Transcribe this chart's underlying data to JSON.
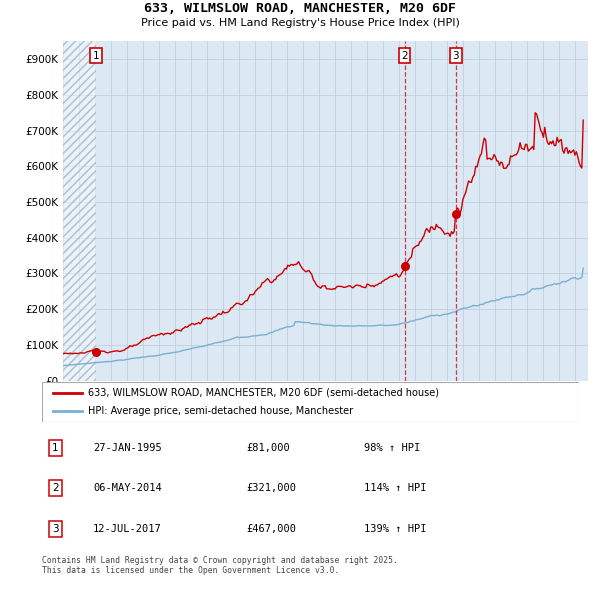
{
  "title": "633, WILMSLOW ROAD, MANCHESTER, M20 6DF",
  "subtitle": "Price paid vs. HM Land Registry's House Price Index (HPI)",
  "background_color": "#ffffff",
  "plot_bg_color": "#dce9f5",
  "grid_color": "#b8ccd8",
  "red_line_color": "#cc0000",
  "blue_line_color": "#7aafd4",
  "sale1": {
    "date_x": 1995.07,
    "price": 81000,
    "label": "1"
  },
  "sale2": {
    "date_x": 2014.34,
    "price": 321000,
    "label": "2"
  },
  "sale3": {
    "date_x": 2017.53,
    "price": 467000,
    "label": "3"
  },
  "ylim": [
    0,
    950000
  ],
  "xlim": [
    1993.0,
    2025.8
  ],
  "ylabel_ticks": [
    0,
    100000,
    200000,
    300000,
    400000,
    500000,
    600000,
    700000,
    800000,
    900000
  ],
  "legend_label_red": "633, WILMSLOW ROAD, MANCHESTER, M20 6DF (semi-detached house)",
  "legend_label_blue": "HPI: Average price, semi-detached house, Manchester",
  "footer": "Contains HM Land Registry data © Crown copyright and database right 2025.\nThis data is licensed under the Open Government Licence v3.0.",
  "table": [
    {
      "num": "1",
      "date": "27-JAN-1995",
      "price": "£81,000",
      "hpi": "98% ↑ HPI"
    },
    {
      "num": "2",
      "date": "06-MAY-2014",
      "price": "£321,000",
      "hpi": "114% ↑ HPI"
    },
    {
      "num": "3",
      "date": "12-JUL-2017",
      "price": "£467,000",
      "hpi": "139% ↑ HPI"
    }
  ]
}
